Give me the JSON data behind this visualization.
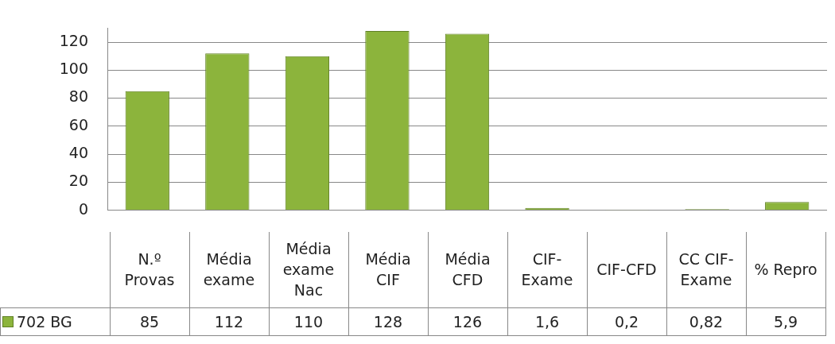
{
  "chart_data": {
    "type": "bar",
    "categories": [
      "N.º Provas",
      "Média exame",
      "Média exame Nac",
      "Média CIF",
      "Média CFD",
      "CIF-Exame",
      "CIF-CFD",
      "CC CIF-Exame",
      "% Repro"
    ],
    "series": [
      {
        "name": "702 BG",
        "color": "#8cb43c",
        "values": [
          85,
          112,
          110,
          128,
          126,
          1.6,
          0.2,
          0.82,
          5.9
        ],
        "value_labels": [
          "85",
          "112",
          "110",
          "128",
          "126",
          "1,6",
          "0,2",
          "0,82",
          "5,9"
        ]
      }
    ],
    "ylim": [
      0,
      130
    ],
    "yticks": [
      0,
      20,
      40,
      60,
      80,
      100,
      120
    ],
    "grid": "y",
    "legend": "bottom left"
  }
}
